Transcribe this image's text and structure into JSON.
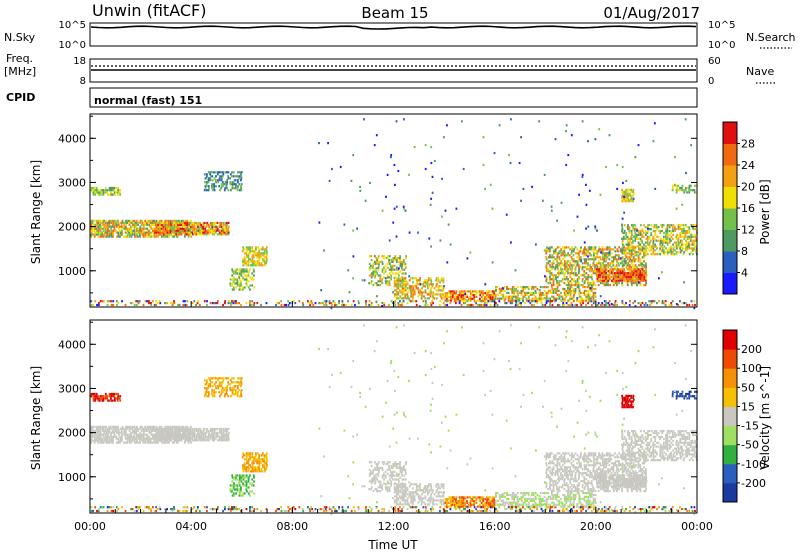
{
  "header": {
    "station": "Unwin (fitACF)",
    "beam": "Beam 15",
    "date": "01/Aug/2017"
  },
  "nsky_panel": {
    "label": "N.Sky",
    "right_label": "N.Search",
    "ticks": [
      "10^5",
      "10^0"
    ],
    "right_ticks": [
      "10^5",
      "10^0"
    ]
  },
  "freq_panel": {
    "label_line1": "Freq.",
    "label_line2": "[MHz]",
    "ticks": [
      "18",
      "8"
    ],
    "right_label": "Nave",
    "right_ticks": [
      "60",
      "0"
    ]
  },
  "cpid_panel": {
    "label": "CPID",
    "value": "normal (fast) 151"
  },
  "colors": {
    "power": [
      "#1a1aff",
      "#2a5fbf",
      "#4f9a5f",
      "#74c04a",
      "#f0e000",
      "#f5a010",
      "#f26a10",
      "#e01010"
    ],
    "velocity": [
      "#e00000",
      "#f04a00",
      "#f59000",
      "#f5c000",
      "#c8c8c0",
      "#a0e060",
      "#30b040",
      "#2a5fbf",
      "#1a3aa0"
    ]
  },
  "chart_data": [
    {
      "type": "heatmap",
      "name": "power",
      "ylabel": "Slant Range [km]",
      "ylim": [
        180,
        4550
      ],
      "yticks": [
        "1000",
        "2000",
        "3000",
        "4000"
      ],
      "colorbar_label": "Power [dB]",
      "colorbar_ticks": [
        "4",
        "8",
        "12",
        "16",
        "20",
        "24",
        "28"
      ],
      "grid": false
    },
    {
      "type": "heatmap",
      "name": "velocity",
      "xlabel": "Time UT",
      "ylabel": "Slant Range [km]",
      "xlim": [
        "00:00",
        "24:00"
      ],
      "xticks": [
        "00:00",
        "04:00",
        "08:00",
        "12:00",
        "16:00",
        "20:00",
        "00:00"
      ],
      "ylim": [
        180,
        4550
      ],
      "yticks": [
        "1000",
        "2000",
        "3000",
        "4000"
      ],
      "colorbar_label": "Velocity [m s^-1]",
      "colorbar_ticks": [
        "200",
        "100",
        "50",
        "15",
        "-15",
        "-50",
        "-100",
        "-200"
      ],
      "grid": false
    }
  ]
}
